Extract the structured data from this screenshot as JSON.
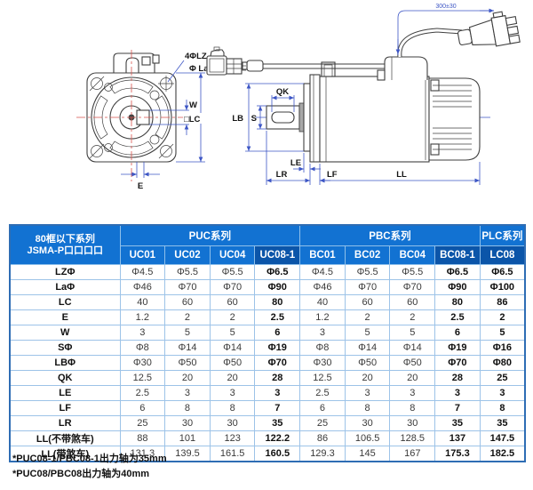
{
  "drawing": {
    "labels": {
      "bolt_holes": "4ΦLZ",
      "boss_dia": "Φ La",
      "keyway_width": "W",
      "flange_square": "□LC",
      "keyway_offset": "E",
      "keyway_length": "QK",
      "shaft_dia": "S",
      "pilot_dia": "LB",
      "flange_step": "LE",
      "shaft_length": "LR",
      "flange_thickness": "LF",
      "body_length": "LL",
      "cable_length": "300±30"
    }
  },
  "table": {
    "corner_header": {
      "line1": "80框以下系列",
      "line2": "JSMA-P口口口口"
    },
    "groups": [
      {
        "label": "PUC系列",
        "span": 4
      },
      {
        "label": "PBC系列",
        "span": 4
      },
      {
        "label": "PLC系列",
        "span": 1
      }
    ],
    "columns": [
      "UC01",
      "UC02",
      "UC04",
      "UC08-1",
      "BC01",
      "BC02",
      "BC04",
      "BC08-1",
      "LC08"
    ],
    "highlight_columns": [
      "UC08-1",
      "BC08-1",
      "LC08"
    ],
    "rows": [
      {
        "label": "LZΦ",
        "values": [
          "Φ4.5",
          "Φ5.5",
          "Φ5.5",
          "Φ6.5",
          "Φ4.5",
          "Φ5.5",
          "Φ5.5",
          "Φ6.5",
          "Φ6.5"
        ]
      },
      {
        "label": "LaΦ",
        "values": [
          "Φ46",
          "Φ70",
          "Φ70",
          "Φ90",
          "Φ46",
          "Φ70",
          "Φ70",
          "Φ90",
          "Φ100"
        ]
      },
      {
        "label": "LC",
        "values": [
          "40",
          "60",
          "60",
          "80",
          "40",
          "60",
          "60",
          "80",
          "86"
        ]
      },
      {
        "label": "E",
        "values": [
          "1.2",
          "2",
          "2",
          "2.5",
          "1.2",
          "2",
          "2",
          "2.5",
          "2"
        ]
      },
      {
        "label": "W",
        "values": [
          "3",
          "5",
          "5",
          "6",
          "3",
          "5",
          "5",
          "6",
          "5"
        ]
      },
      {
        "label": "SΦ",
        "values": [
          "Φ8",
          "Φ14",
          "Φ14",
          "Φ19",
          "Φ8",
          "Φ14",
          "Φ14",
          "Φ19",
          "Φ16"
        ]
      },
      {
        "label": "LBΦ",
        "values": [
          "Φ30",
          "Φ50",
          "Φ50",
          "Φ70",
          "Φ30",
          "Φ50",
          "Φ50",
          "Φ70",
          "Φ80"
        ]
      },
      {
        "label": "QK",
        "values": [
          "12.5",
          "20",
          "20",
          "28",
          "12.5",
          "20",
          "20",
          "28",
          "25"
        ]
      },
      {
        "label": "LE",
        "values": [
          "2.5",
          "3",
          "3",
          "3",
          "2.5",
          "3",
          "3",
          "3",
          "3"
        ]
      },
      {
        "label": "LF",
        "values": [
          "6",
          "8",
          "8",
          "7",
          "6",
          "8",
          "8",
          "7",
          "8"
        ]
      },
      {
        "label": "LR",
        "values": [
          "25",
          "30",
          "30",
          "35",
          "25",
          "30",
          "30",
          "35",
          "35"
        ]
      },
      {
        "label": "LL(不带煞车)",
        "values": [
          "88",
          "101",
          "123",
          "122.2",
          "86",
          "106.5",
          "128.5",
          "137",
          "147.5"
        ]
      },
      {
        "label": "LL(带煞车)",
        "values": [
          "131.3",
          "139.5",
          "161.5",
          "160.5",
          "129.3",
          "145",
          "167",
          "175.3",
          "182.5"
        ]
      }
    ]
  },
  "notes": [
    "*PUC08-1/PBC08-1出力轴为35mm",
    "*PUC08/PBC08出力轴为40mm"
  ],
  "colors": {
    "header_blue": "#1272d2",
    "header_dark_blue": "#0b55a9",
    "grid_blue": "#9dc3e8",
    "dimension_blue": "#3d56c5",
    "centerline_red": "#d9534d"
  }
}
